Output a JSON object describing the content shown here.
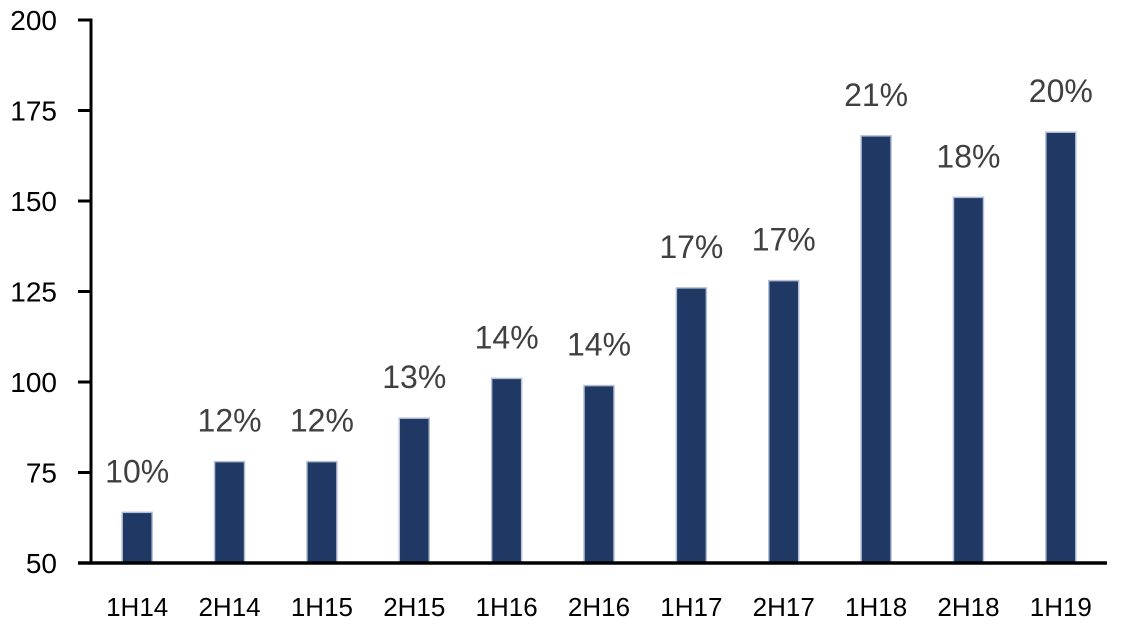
{
  "chart_data": {
    "type": "bar",
    "categories": [
      "1H14",
      "2H14",
      "1H15",
      "2H15",
      "1H16",
      "2H16",
      "1H17",
      "2H17",
      "1H18",
      "2H18",
      "1H19"
    ],
    "values": [
      64,
      78,
      78,
      90,
      101,
      99,
      126,
      128,
      168,
      151,
      169
    ],
    "bar_labels": [
      "10%",
      "12%",
      "12%",
      "13%",
      "14%",
      "14%",
      "17%",
      "17%",
      "21%",
      "18%",
      "20%"
    ],
    "title": "",
    "xlabel": "",
    "ylabel": "",
    "ylim": [
      50,
      200
    ],
    "yticks": [
      50,
      75,
      100,
      125,
      150,
      175,
      200
    ],
    "grid": false,
    "legend_position": "none",
    "colors": {
      "bar_fill": "#1F3864",
      "bar_border": "#B3BFD9",
      "data_label": "#404040",
      "axis_line": "#000000",
      "tick_label": "#000000"
    }
  }
}
